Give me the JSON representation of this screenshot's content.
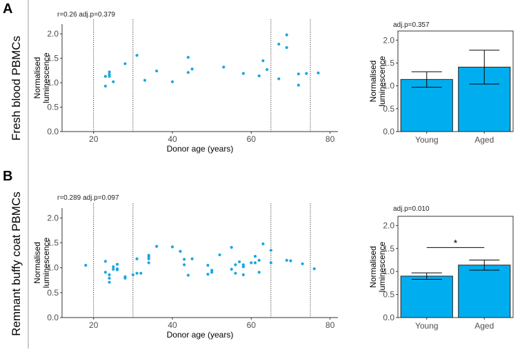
{
  "panels": {
    "A": {
      "letter": "A",
      "row_label": "Fresh blood PBMCs",
      "scatter_annotation": "r=0.26 adj.p=0.379",
      "bar_annotation": "adj.p=0.357"
    },
    "B": {
      "letter": "B",
      "row_label": "Remnant buffy coat PBMCs",
      "scatter_annotation": "r=0.289 adj.p=0.097",
      "bar_annotation": "adj.p=0.010",
      "significance": "*"
    }
  },
  "colors": {
    "point": "#1aa7e0",
    "bar": "#00aeef",
    "axis": "#333333"
  },
  "chart_data": [
    {
      "id": "A-scatter",
      "type": "scatter",
      "title": "",
      "xlabel": "Donor age (years)",
      "ylabel_lines": [
        "Normalised",
        "luminescence"
      ],
      "xlim": [
        12,
        82
      ],
      "ylim": [
        0,
        2.2
      ],
      "xticks": [
        "20",
        "40",
        "60",
        "80"
      ],
      "yticks": [
        "0.0",
        "0.5",
        "1.0",
        "1.5",
        "2.0"
      ],
      "vlines": [
        20,
        30,
        65,
        75
      ],
      "points": [
        [
          23,
          0.93
        ],
        [
          23,
          1.13
        ],
        [
          24,
          1.17
        ],
        [
          24,
          1.22
        ],
        [
          24,
          1.13
        ],
        [
          25,
          1.02
        ],
        [
          28,
          1.39
        ],
        [
          31,
          1.56
        ],
        [
          33,
          1.05
        ],
        [
          36,
          1.24
        ],
        [
          40,
          1.02
        ],
        [
          44,
          1.52
        ],
        [
          44,
          1.21
        ],
        [
          45,
          1.28
        ],
        [
          53,
          1.32
        ],
        [
          58,
          1.19
        ],
        [
          62,
          1.14
        ],
        [
          63,
          1.45
        ],
        [
          64,
          1.27
        ],
        [
          67,
          1.08
        ],
        [
          67,
          1.79
        ],
        [
          69,
          1.98
        ],
        [
          69,
          1.72
        ],
        [
          72,
          1.18
        ],
        [
          72,
          0.95
        ],
        [
          74,
          1.19
        ],
        [
          77,
          1.2
        ]
      ]
    },
    {
      "id": "A-bar",
      "type": "bar",
      "title": "",
      "categories": [
        "Young",
        "Aged"
      ],
      "values": [
        1.14,
        1.41
      ],
      "error_low": [
        0.97,
        1.04
      ],
      "error_high": [
        1.31,
        1.78
      ],
      "ylabel_lines": [
        "Normalised",
        "luminescence"
      ],
      "ylim": [
        0,
        2.2
      ],
      "yticks": [
        "0.0",
        "0.5",
        "1.0",
        "1.5",
        "2.0"
      ]
    },
    {
      "id": "B-scatter",
      "type": "scatter",
      "title": "",
      "xlabel": "Donor age (years)",
      "ylabel_lines": [
        "Normalised",
        "luminescence"
      ],
      "xlim": [
        12,
        82
      ],
      "ylim": [
        0,
        2.2
      ],
      "xticks": [
        "20",
        "40",
        "60",
        "80"
      ],
      "yticks": [
        "0.0",
        "0.5",
        "1.0",
        "1.5",
        "2.0"
      ],
      "vlines": [
        20,
        30,
        65,
        75
      ],
      "points": [
        [
          18,
          1.05
        ],
        [
          23,
          1.13
        ],
        [
          23,
          0.91
        ],
        [
          24,
          0.86
        ],
        [
          24,
          0.79
        ],
        [
          24,
          0.71
        ],
        [
          25,
          0.97
        ],
        [
          25,
          1.02
        ],
        [
          26,
          1.07
        ],
        [
          26,
          0.98
        ],
        [
          26,
          0.96
        ],
        [
          28,
          0.82
        ],
        [
          28,
          0.79
        ],
        [
          30,
          0.86
        ],
        [
          31,
          1.18
        ],
        [
          31,
          0.89
        ],
        [
          32,
          0.89
        ],
        [
          34,
          1.18
        ],
        [
          34,
          1.1
        ],
        [
          34,
          1.25
        ],
        [
          34,
          1.22
        ],
        [
          36,
          1.43
        ],
        [
          40,
          1.42
        ],
        [
          42,
          1.33
        ],
        [
          43,
          1.06
        ],
        [
          43,
          1.17
        ],
        [
          44,
          0.85
        ],
        [
          45,
          1.18
        ],
        [
          49,
          1.05
        ],
        [
          49,
          0.87
        ],
        [
          50,
          0.91
        ],
        [
          50,
          0.95
        ],
        [
          52,
          1.26
        ],
        [
          55,
          1.41
        ],
        [
          55,
          0.97
        ],
        [
          56,
          0.89
        ],
        [
          56,
          1.06
        ],
        [
          57,
          1.12
        ],
        [
          58,
          0.86
        ],
        [
          58,
          1.02
        ],
        [
          58,
          1.06
        ],
        [
          60,
          1.1
        ],
        [
          61,
          1.1
        ],
        [
          61,
          1.23
        ],
        [
          62,
          0.91
        ],
        [
          62,
          1.15
        ],
        [
          63,
          1.48
        ],
        [
          65,
          1.35
        ],
        [
          65,
          1.1
        ],
        [
          69,
          1.15
        ],
        [
          70,
          1.14
        ],
        [
          73,
          1.08
        ],
        [
          76,
          0.98
        ]
      ]
    },
    {
      "id": "B-bar",
      "type": "bar",
      "title": "",
      "categories": [
        "Young",
        "Aged"
      ],
      "values": [
        0.9,
        1.14
      ],
      "error_low": [
        0.83,
        1.03
      ],
      "error_high": [
        0.97,
        1.25
      ],
      "ylabel_lines": [
        "Normalised",
        "luminescence"
      ],
      "ylim": [
        0,
        2.2
      ],
      "yticks": [
        "0.0",
        "0.5",
        "1.0",
        "1.5",
        "2.0"
      ],
      "significance_y": 1.52
    }
  ]
}
